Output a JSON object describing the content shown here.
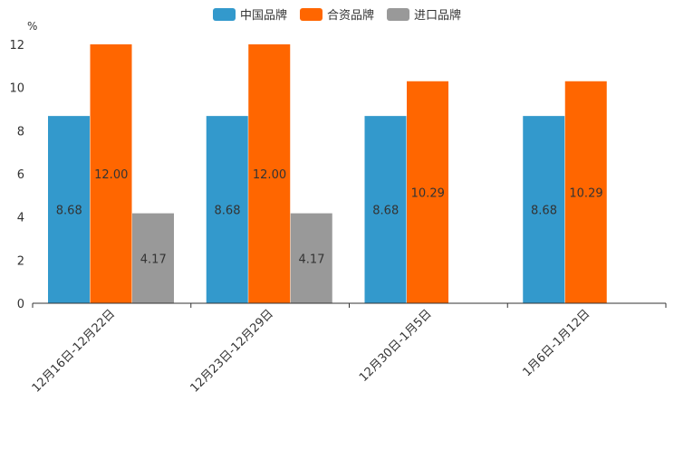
{
  "chart_data": {
    "type": "bar",
    "unit": "%",
    "categories": [
      "12月16日-12月22日",
      "12月23日-12月29日",
      "12月30日-1月5日",
      "1月6日-1月12日"
    ],
    "series": [
      {
        "name": "中国品牌",
        "color": "#3399cc",
        "values": [
          8.68,
          8.68,
          8.68,
          8.68
        ],
        "labels": [
          "8.68",
          "8.68",
          "8.68",
          "8.68"
        ]
      },
      {
        "name": "合资品牌",
        "color": "#ff6600",
        "values": [
          12.0,
          12.0,
          10.29,
          10.29
        ],
        "labels": [
          "12.00",
          "12.00",
          "10.29",
          "10.29"
        ]
      },
      {
        "name": "进口品牌",
        "color": "#999999",
        "values": [
          4.17,
          4.17,
          null,
          null
        ],
        "labels": [
          "4.17",
          "4.17",
          null,
          null
        ]
      }
    ],
    "ylim": [
      0,
      12
    ],
    "yticks": [
      "0",
      "2",
      "4",
      "6",
      "8",
      "10",
      "12"
    ]
  }
}
